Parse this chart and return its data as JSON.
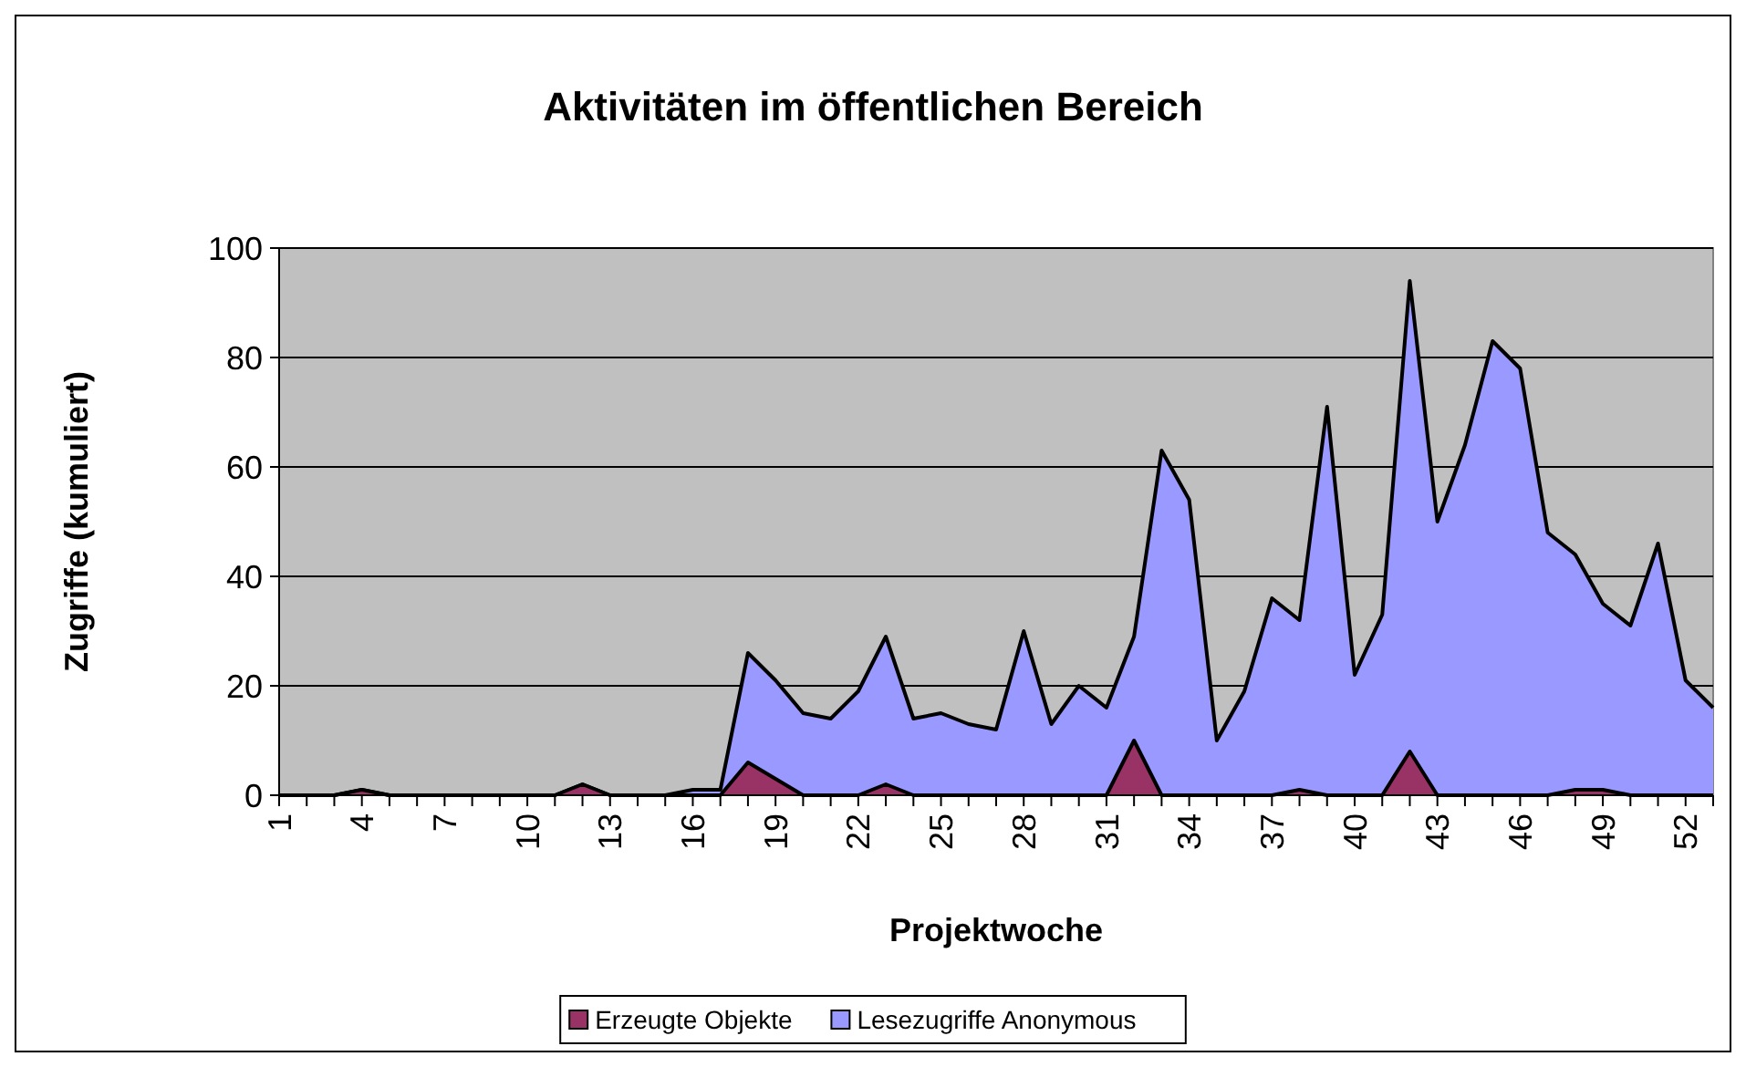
{
  "chart_data": {
    "type": "area",
    "title": "Aktivitäten im öffentlichen Bereich",
    "xlabel": "Projektwoche",
    "ylabel": "Zugriffe (kumuliert)",
    "categories": [
      "1",
      null,
      null,
      "4",
      null,
      null,
      "7",
      null,
      null,
      "10",
      null,
      null,
      "13",
      null,
      null,
      "16",
      null,
      null,
      "19",
      null,
      null,
      "22",
      null,
      null,
      "25",
      null,
      null,
      "28",
      null,
      null,
      "31",
      null,
      null,
      "34",
      null,
      null,
      "37",
      null,
      null,
      "40",
      null,
      null,
      "43",
      null,
      null,
      "46",
      null,
      null,
      "49",
      null,
      null,
      "52",
      null
    ],
    "series": [
      {
        "name": "Lesezugriffe Anonymous",
        "color": "#9999ff",
        "values": [
          0,
          0,
          0,
          1,
          0,
          0,
          0,
          0,
          0,
          0,
          0,
          2,
          0,
          0,
          0,
          1,
          1,
          26,
          21,
          15,
          14,
          19,
          29,
          14,
          15,
          13,
          12,
          30,
          13,
          20,
          16,
          29,
          63,
          54,
          10,
          19,
          36,
          32,
          71,
          22,
          33,
          94,
          50,
          64,
          83,
          78,
          48,
          44,
          35,
          31,
          46,
          21,
          16
        ]
      },
      {
        "name": "Erzeugte Objekte",
        "color": "#993366",
        "values": [
          0,
          0,
          0,
          1,
          0,
          0,
          0,
          0,
          0,
          0,
          0,
          2,
          0,
          0,
          0,
          0,
          0,
          6,
          3,
          0,
          0,
          0,
          2,
          0,
          0,
          0,
          0,
          0,
          0,
          0,
          0,
          10,
          0,
          0,
          0,
          0,
          0,
          1,
          0,
          0,
          0,
          8,
          0,
          0,
          0,
          0,
          0,
          1,
          1,
          0,
          0,
          0,
          0
        ]
      }
    ],
    "ylim": [
      0,
      100
    ],
    "yticks": [
      0,
      20,
      40,
      60,
      80,
      100
    ],
    "grid": "y",
    "legend": "bottom"
  }
}
